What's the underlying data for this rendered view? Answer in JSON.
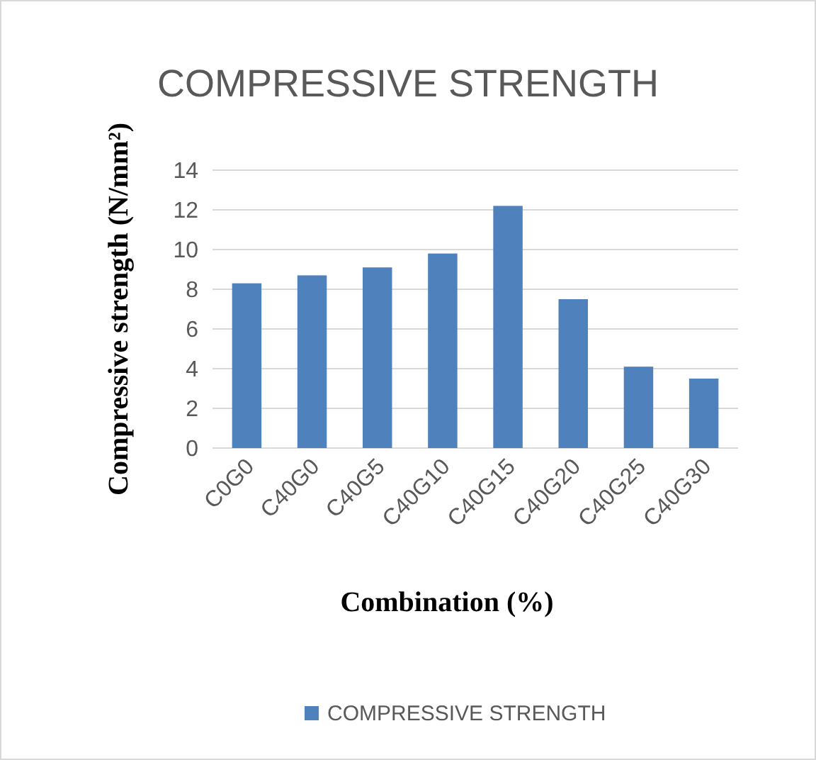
{
  "chart_data": {
    "type": "bar",
    "title": "COMPRESSIVE STRENGTH",
    "xlabel": "Combination (%)",
    "ylabel": "Compressive strength (N/mm²)",
    "categories": [
      "C0G0",
      "C40G0",
      "C40G5",
      "C40G10",
      "C40G15",
      "C40G20",
      "C40G25",
      "C40G30"
    ],
    "series": [
      {
        "name": "COMPRESSIVE STRENGTH",
        "color": "#4f81bd",
        "values": [
          8.3,
          8.7,
          9.1,
          9.8,
          12.2,
          7.5,
          4.1,
          3.5
        ]
      }
    ],
    "ylim": [
      0,
      14
    ],
    "yticks": [
      0,
      2,
      4,
      6,
      8,
      10,
      12,
      14
    ],
    "grid": "y",
    "legend": "bottom"
  }
}
